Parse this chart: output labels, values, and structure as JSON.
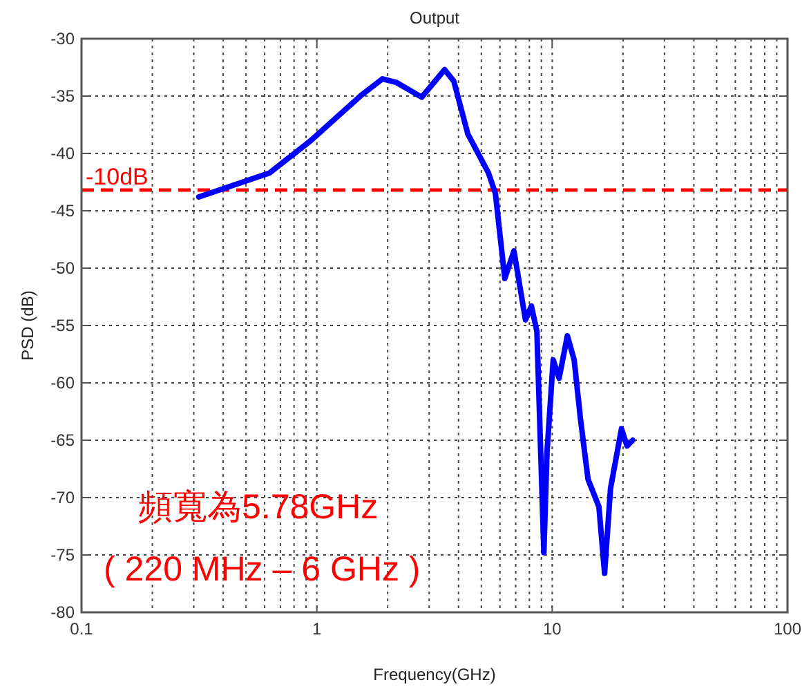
{
  "chart_data": {
    "type": "line",
    "title": "Output",
    "xlabel": "Frequency(GHz)",
    "ylabel": "PSD (dB)",
    "log": "x",
    "grid": true,
    "xlim": [
      0.1,
      100
    ],
    "xticks": [
      0.1,
      1,
      10,
      100
    ],
    "ylim": [
      -80,
      -30
    ],
    "yticks": [
      -80,
      -75,
      -70,
      -65,
      -60,
      -55,
      -50,
      -45,
      -40,
      -35,
      -30
    ],
    "series": [
      {
        "color": "#0000ff",
        "x": [
          0.315,
          0.63,
          0.94,
          1.55,
          1.9,
          2.17,
          2.79,
          3.49,
          3.82,
          4.38,
          5.36,
          5.74,
          6.29,
          6.88,
          7.7,
          8.16,
          8.61,
          9.22,
          9.51,
          10.1,
          10.7,
          11.6,
          12.4,
          13.2,
          14.2,
          15.8,
          16.7,
          17.7,
          19.7,
          20.8,
          22.0
        ],
        "values": [
          -43.8,
          -41.7,
          -38.9,
          -34.9,
          -33.5,
          -33.8,
          -35.1,
          -32.7,
          -33.7,
          -38.3,
          -41.7,
          -43.5,
          -50.9,
          -48.5,
          -54.5,
          -53.3,
          -55.5,
          -74.8,
          -66.0,
          -58.0,
          -59.6,
          -55.9,
          -58.0,
          -63.2,
          -68.4,
          -70.8,
          -76.6,
          -69.2,
          -64.0,
          -65.5,
          -65.0
        ]
      }
    ],
    "ref_lines": [
      {
        "axis": "y",
        "value": -43.2,
        "label": "-10dB",
        "color": "#ff0000",
        "line_style": "dashed"
      }
    ],
    "annotations": [
      "頻寬為5.78GHz",
      "( 220 MHz – 6 GHz )"
    ]
  }
}
